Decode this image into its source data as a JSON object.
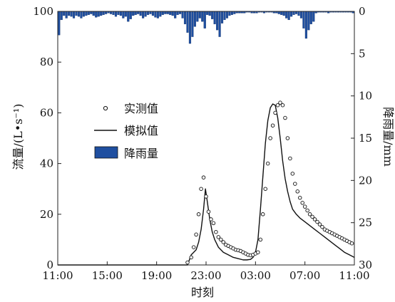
{
  "chart_data": {
    "type": "line",
    "title": "",
    "xlabel": "时刻",
    "ylabel_left": "流量/(L•s⁻¹)",
    "ylabel_right": "降雨量/mm",
    "x_ticks": [
      "11:00",
      "15:00",
      "19:00",
      "23:00",
      "03:00",
      "07:00",
      "11:00"
    ],
    "x_range_hours": [
      0,
      24
    ],
    "y_left_range": [
      0,
      100
    ],
    "y_left_ticks": [
      0,
      20,
      40,
      60,
      80,
      100
    ],
    "y_right_range": [
      0,
      30
    ],
    "y_right_ticks": [
      0,
      5,
      10,
      15,
      20,
      25,
      30
    ],
    "y_right_inverted": true,
    "legend_placement": "left",
    "legend": [
      {
        "label": "实测值",
        "style": "open-circle"
      },
      {
        "label": "模拟值",
        "style": "line"
      },
      {
        "label": "降雨量",
        "style": "bar"
      }
    ],
    "series": [
      {
        "name": "实测值",
        "kind": "scatter",
        "x": [
          10.5,
          10.8,
          11.0,
          11.2,
          11.4,
          11.6,
          11.8,
          12.0,
          12.2,
          12.4,
          12.6,
          12.8,
          13.0,
          13.2,
          13.4,
          13.6,
          13.8,
          14.0,
          14.2,
          14.4,
          14.6,
          14.8,
          15.0,
          15.2,
          15.4,
          15.6,
          15.8,
          16.0,
          16.2,
          16.4,
          16.6,
          16.8,
          17.0,
          17.2,
          17.4,
          17.6,
          17.8,
          18.0,
          18.2,
          18.4,
          18.6,
          18.8,
          19.0,
          19.2,
          19.4,
          19.6,
          19.8,
          20.0,
          20.2,
          20.4,
          20.6,
          20.8,
          21.0,
          21.2,
          21.4,
          21.6,
          21.8,
          22.0,
          22.2,
          22.4,
          22.6,
          22.8,
          23.0,
          23.2,
          23.4,
          23.6,
          23.8
        ],
        "y": [
          1.0,
          3.0,
          7.0,
          12.0,
          20.0,
          30.0,
          34.5,
          27.0,
          21.0,
          18.0,
          16.5,
          13.0,
          11.0,
          10.0,
          9.0,
          8.0,
          7.5,
          7.0,
          6.5,
          6.0,
          5.8,
          5.5,
          5.0,
          4.5,
          4.0,
          3.8,
          4.0,
          4.5,
          5.0,
          10.0,
          20.0,
          30.0,
          40.0,
          50.0,
          55.0,
          60.0,
          63.0,
          64.0,
          63.0,
          58.0,
          50.0,
          42.0,
          36.0,
          32.0,
          29.0,
          26.5,
          24.5,
          23.0,
          21.5,
          20.0,
          19.0,
          18.0,
          17.0,
          16.0,
          15.0,
          14.0,
          13.5,
          13.0,
          12.5,
          12.0,
          11.5,
          11.0,
          10.5,
          10.0,
          9.5,
          9.0,
          8.5
        ]
      },
      {
        "name": "模拟值",
        "kind": "line",
        "x": [
          0,
          9.5,
          10.4,
          10.5,
          10.8,
          11.0,
          11.2,
          11.4,
          11.6,
          11.8,
          11.95,
          12.1,
          12.3,
          12.5,
          12.7,
          13.0,
          13.4,
          13.8,
          14.2,
          14.6,
          15.0,
          15.3,
          15.6,
          15.8,
          16.0,
          16.2,
          16.4,
          16.6,
          16.8,
          17.0,
          17.2,
          17.4,
          17.6,
          17.8,
          18.0,
          18.2,
          18.4,
          18.6,
          18.8,
          19.0,
          19.3,
          19.6,
          20.0,
          20.4,
          20.8,
          21.2,
          21.6,
          22.0,
          22.4,
          22.8,
          23.2,
          23.6,
          24.0
        ],
        "y": [
          0,
          0,
          0,
          0,
          4.0,
          5.0,
          6.0,
          9.0,
          14.0,
          22.0,
          30.0,
          25.0,
          18.0,
          13.0,
          10.0,
          7.0,
          5.0,
          4.0,
          3.0,
          2.5,
          2.0,
          2.0,
          2.2,
          3.0,
          5.0,
          10.0,
          22.0,
          35.0,
          48.0,
          57.0,
          62.0,
          63.5,
          63.0,
          58.0,
          50.0,
          41.0,
          34.0,
          29.0,
          25.0,
          22.0,
          20.0,
          18.5,
          17.0,
          15.5,
          14.0,
          12.5,
          11.0,
          9.5,
          8.0,
          6.5,
          5.0,
          4.0,
          3.0
        ]
      }
    ],
    "rainfall": {
      "name": "降雨量",
      "kind": "bar",
      "axis": "right",
      "x": [
        0.1,
        0.3,
        0.5,
        0.7,
        0.9,
        1.1,
        1.3,
        1.5,
        1.7,
        1.9,
        2.1,
        2.3,
        2.5,
        2.7,
        2.9,
        3.1,
        3.3,
        3.5,
        3.7,
        3.9,
        4.1,
        4.3,
        4.5,
        4.7,
        4.9,
        5.1,
        5.3,
        5.5,
        5.7,
        5.9,
        6.1,
        6.3,
        6.5,
        6.7,
        6.9,
        7.1,
        7.3,
        7.5,
        7.7,
        7.9,
        8.1,
        8.3,
        8.5,
        8.7,
        8.9,
        9.1,
        9.3,
        9.5,
        9.7,
        9.9,
        10.1,
        10.3,
        10.5,
        10.7,
        10.9,
        11.1,
        11.3,
        11.5,
        11.7,
        11.9,
        12.1,
        12.3,
        12.5,
        12.7,
        12.9,
        13.1,
        13.3,
        13.5,
        13.7,
        13.9,
        14.1,
        14.3,
        14.5,
        14.7,
        14.9,
        15.1,
        15.3,
        15.5,
        15.7,
        15.9,
        16.1,
        16.3,
        16.5,
        16.7,
        16.9,
        17.1,
        17.3,
        17.5,
        17.7,
        17.9,
        18.1,
        18.3,
        18.5,
        18.7,
        18.9,
        19.1,
        19.3,
        19.5,
        19.7,
        19.9,
        20.1,
        20.3,
        20.5,
        20.7,
        20.9,
        21.1,
        21.3,
        21.5,
        21.7,
        21.9,
        22.1,
        22.3,
        22.5,
        22.7,
        22.9,
        23.1,
        23.3,
        23.5,
        23.7,
        23.9
      ],
      "values": [
        2.8,
        1.0,
        0.5,
        0.8,
        0.5,
        0.6,
        0.8,
        0.5,
        0.6,
        0.8,
        0.6,
        0.5,
        0.4,
        0.3,
        0.5,
        0.7,
        0.6,
        0.5,
        0.4,
        0.3,
        0.2,
        0.3,
        0.4,
        0.6,
        0.4,
        0.5,
        0.8,
        0.6,
        1.2,
        0.9,
        0.5,
        0.4,
        0.3,
        0.5,
        0.8,
        0.6,
        0.4,
        0.3,
        0.5,
        0.7,
        0.8,
        0.6,
        0.4,
        0.3,
        0.3,
        0.4,
        0.5,
        0.8,
        0.4,
        0.3,
        0.8,
        1.5,
        0.6,
        0.4,
        0.5,
        1.0,
        1.8,
        1.3,
        0.8,
        0.6,
        0.4,
        0.5,
        0.9,
        1.5,
        2.2,
        3.0,
        1.4,
        1.0,
        0.8,
        0.5,
        0.4,
        0.3,
        0.2,
        0.2,
        0.2,
        0.2,
        0.1,
        0.1,
        0.2,
        0.2,
        0.2,
        0.1,
        0.1,
        0.2,
        0.1,
        0.1,
        0.1,
        0.2,
        0.2,
        0.3,
        0.4,
        0.5,
        0.8,
        1.0,
        0.6,
        0.4,
        0.3,
        0.5,
        0.6,
        0.3,
        0.2,
        0.2,
        0.1,
        0.1,
        0.2,
        0.1,
        0.1,
        0.1,
        0.1,
        0.2,
        0.1,
        0.1,
        0.1,
        0.1,
        0.1,
        0.1,
        0.1,
        0.1,
        0.1,
        0.2
      ],
      "color": "#1f4fa0"
    },
    "rainfall_peaks": {
      "x": [
        10.3,
        10.5,
        10.7,
        10.9,
        11.1,
        11.3,
        11.5,
        11.7,
        11.9,
        19.7,
        19.9,
        20.1,
        20.3,
        20.5,
        20.7
      ],
      "values": [
        1.5,
        2.5,
        3.8,
        3.0,
        1.8,
        1.2,
        0.8,
        1.2,
        2.0,
        0.8,
        2.0,
        3.2,
        2.2,
        1.5,
        1.2
      ]
    }
  }
}
